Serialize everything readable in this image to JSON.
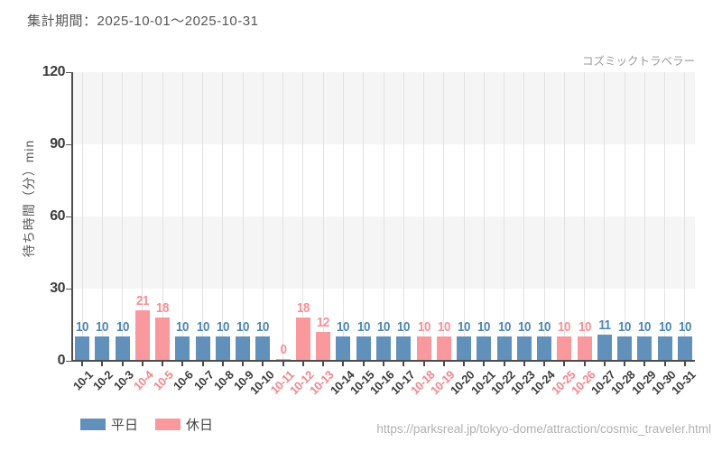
{
  "header": {
    "period_label": "集計期間：2025-10-01～2025-10-31"
  },
  "attraction_label": "コズミックトラベラー",
  "y_axis_title": "待ち時間（分）min",
  "legend": [
    {
      "key": "weekday",
      "label": "平日",
      "color": "#6190bb"
    },
    {
      "key": "holiday",
      "label": "休日",
      "color": "#f9999e"
    }
  ],
  "footer": {
    "url": "https://parksreal.jp/tokyo-dome/attraction/cosmic_traveler.html"
  },
  "chart_data": {
    "type": "bar",
    "title": "コズミックトラベラー",
    "xlabel": "",
    "ylabel": "待ち時間（分）min",
    "ylim": [
      0,
      120
    ],
    "yticks": [
      0,
      30,
      60,
      90,
      120
    ],
    "grid": "horizontal-bands-and-vertical-lines",
    "legend_position": "bottom-left",
    "categories": [
      "10-1",
      "10-2",
      "10-3",
      "10-4",
      "10-5",
      "10-6",
      "10-7",
      "10-8",
      "10-9",
      "10-10",
      "10-11",
      "10-12",
      "10-13",
      "10-14",
      "10-15",
      "10-16",
      "10-17",
      "10-18",
      "10-19",
      "10-20",
      "10-21",
      "10-22",
      "10-23",
      "10-24",
      "10-25",
      "10-26",
      "10-27",
      "10-28",
      "10-29",
      "10-30",
      "10-31"
    ],
    "values": [
      10,
      10,
      10,
      21,
      18,
      10,
      10,
      10,
      10,
      10,
      0,
      18,
      12,
      10,
      10,
      10,
      10,
      10,
      10,
      10,
      10,
      10,
      10,
      10,
      10,
      10,
      11,
      10,
      10,
      10,
      10
    ],
    "day_type": [
      "weekday",
      "weekday",
      "weekday",
      "holiday",
      "holiday",
      "weekday",
      "weekday",
      "weekday",
      "weekday",
      "weekday",
      "holiday",
      "holiday",
      "holiday",
      "weekday",
      "weekday",
      "weekday",
      "weekday",
      "holiday",
      "holiday",
      "weekday",
      "weekday",
      "weekday",
      "weekday",
      "weekday",
      "holiday",
      "holiday",
      "weekday",
      "weekday",
      "weekday",
      "weekday",
      "weekday"
    ],
    "series_colors": {
      "weekday": {
        "bar": "#6190bb",
        "value_label": "#4d86b5",
        "tick_label": "#3d3d3d"
      },
      "holiday": {
        "bar": "#f9999e",
        "value_label": "#f78f96",
        "tick_label": "#f4868d"
      }
    },
    "legend": [
      "平日",
      "休日"
    ]
  }
}
